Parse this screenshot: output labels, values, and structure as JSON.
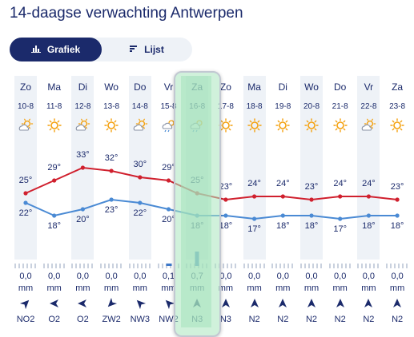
{
  "title": "14-daagse verwachting Antwerpen",
  "tabs": [
    {
      "label": "Grafiek",
      "icon": "bar-chart-icon",
      "active": true
    },
    {
      "label": "Lijst",
      "icon": "list-icon",
      "active": false
    }
  ],
  "colors": {
    "max_line": "#d0202e",
    "min_line": "#4a8ad4",
    "navy": "#1b2a6b",
    "sun": "#f4a10f"
  },
  "days": [
    {
      "day": "Zo",
      "date": "10-8",
      "icon": "partly-cloudy-icon",
      "rain": "0,0",
      "unit": "mm",
      "wind": "NO2"
    },
    {
      "day": "Ma",
      "date": "11-8",
      "icon": "sun-icon",
      "rain": "0,0",
      "unit": "mm",
      "wind": "O2"
    },
    {
      "day": "Di",
      "date": "12-8",
      "icon": "partly-cloudy-icon",
      "rain": "0,0",
      "unit": "mm",
      "wind": "O2"
    },
    {
      "day": "Wo",
      "date": "13-8",
      "icon": "sun-icon",
      "rain": "0,0",
      "unit": "mm",
      "wind": "ZW2"
    },
    {
      "day": "Do",
      "date": "14-8",
      "icon": "partly-cloudy-icon",
      "rain": "0,0",
      "unit": "mm",
      "wind": "NW3"
    },
    {
      "day": "Vr",
      "date": "15-8",
      "icon": "cloud-rain-icon",
      "rain": "0,1",
      "unit": "mm",
      "wind": "NW2"
    },
    {
      "day": "Za",
      "date": "16-8",
      "icon": "cloud-rain-icon",
      "rain": "0,7",
      "unit": "mm",
      "wind": "N3"
    },
    {
      "day": "Zo",
      "date": "17-8",
      "icon": "sun-icon",
      "rain": "0,0",
      "unit": "mm",
      "wind": "N3"
    },
    {
      "day": "Ma",
      "date": "18-8",
      "icon": "sun-icon",
      "rain": "0,0",
      "unit": "mm",
      "wind": "N2"
    },
    {
      "day": "Di",
      "date": "19-8",
      "icon": "sun-icon",
      "rain": "0,0",
      "unit": "mm",
      "wind": "N2"
    },
    {
      "day": "Wo",
      "date": "20-8",
      "icon": "sun-icon",
      "rain": "0,0",
      "unit": "mm",
      "wind": "N2"
    },
    {
      "day": "Do",
      "date": "21-8",
      "icon": "sun-icon",
      "rain": "0,0",
      "unit": "mm",
      "wind": "N2"
    },
    {
      "day": "Vr",
      "date": "22-8",
      "icon": "partly-cloudy-icon",
      "rain": "0,0",
      "unit": "mm",
      "wind": "N2"
    },
    {
      "day": "Za",
      "date": "23-8",
      "icon": "sun-icon",
      "rain": "0,0",
      "unit": "mm",
      "wind": "N2"
    }
  ],
  "chart_data": {
    "type": "line",
    "categories": [
      "10-8",
      "11-8",
      "12-8",
      "13-8",
      "14-8",
      "15-8",
      "16-8",
      "17-8",
      "18-8",
      "19-8",
      "20-8",
      "21-8",
      "22-8",
      "23-8"
    ],
    "series": [
      {
        "values": [
          25,
          29,
          33,
          32,
          30,
          29,
          25,
          23,
          24,
          24,
          23,
          24,
          24,
          23
        ],
        "labels": [
          "25°",
          "29°",
          "33°",
          "32°",
          "30°",
          "29°",
          "25°",
          "23°",
          "24°",
          "24°",
          "23°",
          "24°",
          "24°",
          "23°"
        ]
      },
      {
        "values": [
          22,
          18,
          20,
          23,
          22,
          20,
          18,
          18,
          17,
          18,
          18,
          17,
          18,
          18
        ],
        "labels": [
          "22°",
          "18°",
          "20°",
          "23°",
          "22°",
          "20°",
          "18°",
          "18°",
          "17°",
          "18°",
          "18°",
          "17°",
          "18°",
          "18°"
        ]
      }
    ],
    "rain_mm": [
      0.0,
      0.0,
      0.0,
      0.0,
      0.0,
      0.1,
      0.7,
      0.0,
      0.0,
      0.0,
      0.0,
      0.0,
      0.0,
      0.0
    ],
    "wind_direction_deg": [
      225,
      90,
      90,
      45,
      135,
      135,
      180,
      180,
      180,
      180,
      180,
      180,
      180,
      180
    ]
  }
}
